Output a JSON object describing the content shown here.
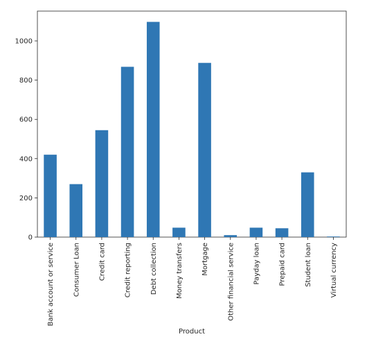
{
  "chart_data": {
    "type": "bar",
    "title": "",
    "xlabel": "Product",
    "ylabel": "",
    "categories": [
      "Bank account or service",
      "Consumer Loan",
      "Credit card",
      "Credit reporting",
      "Debt collection",
      "Money transfers",
      "Mortgage",
      "Other financial service",
      "Payday loan",
      "Prepaid card",
      "Student loan",
      "Virtual currency"
    ],
    "values": [
      420,
      270,
      545,
      868,
      1097,
      48,
      888,
      10,
      48,
      45,
      330,
      3
    ],
    "ylim": [
      0,
      1152
    ],
    "yticks": [
      0,
      200,
      400,
      600,
      800,
      1000
    ],
    "ytick_labels": [
      "0",
      "200",
      "400",
      "600",
      "800",
      "1000"
    ],
    "bar_color": "#2f77b4",
    "grid": false,
    "legend": "none"
  }
}
